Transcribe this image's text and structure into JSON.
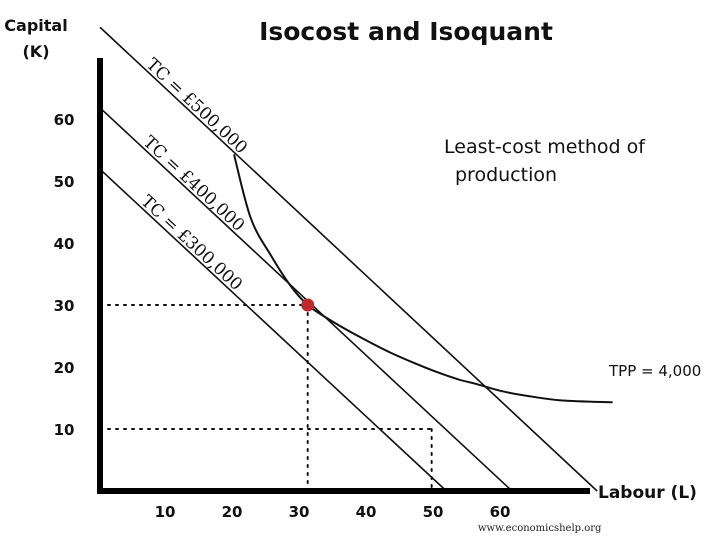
{
  "chart_data": {
    "type": "line",
    "title": "Isocost and Isoquant",
    "ylabel_line1": "Capital",
    "ylabel_line2": "(K)",
    "xlabel": "Labour (L)",
    "x_ticks": [
      10,
      20,
      30,
      40,
      50,
      60
    ],
    "y_ticks": [
      10,
      20,
      30,
      40,
      50,
      60
    ],
    "xlim": [
      0,
      73
    ],
    "ylim": [
      0,
      70
    ],
    "isocost_lines": [
      {
        "label": "TC = £500,000",
        "points": [
          [
            0,
            74.8
          ],
          [
            74.2,
            0
          ]
        ]
      },
      {
        "label": "TC = £400,000",
        "points": [
          [
            0,
            61.8
          ],
          [
            61.5,
            0
          ]
        ]
      },
      {
        "label": "TC = £300,000",
        "points": [
          [
            0,
            51.9
          ],
          [
            51.7,
            0
          ]
        ]
      }
    ],
    "isoquant": {
      "label": "TPP = 4,000",
      "points": [
        [
          20,
          54.3
        ],
        [
          22.5,
          44
        ],
        [
          25.5,
          38
        ],
        [
          28.5,
          33
        ],
        [
          31,
          30
        ],
        [
          34,
          27.8
        ],
        [
          38,
          25.3
        ],
        [
          43,
          22.5
        ],
        [
          47,
          20.6
        ],
        [
          50.5,
          19.1
        ],
        [
          53.5,
          18
        ],
        [
          56,
          17.3
        ],
        [
          60,
          16.1
        ],
        [
          64,
          15.3
        ],
        [
          69,
          14.6
        ],
        [
          76.5,
          14.3
        ]
      ]
    },
    "optimum": {
      "x": 31,
      "y": 30
    },
    "reference_points": [
      {
        "x": 31,
        "y": 30
      },
      {
        "x": 49.5,
        "y": 10
      }
    ],
    "annotation_line1": "Least-cost method of",
    "annotation_line2": "production",
    "source": "www.economicshelp.org",
    "colors": {
      "axis": "#000000",
      "line": "#111111",
      "optimum": "#c0282b"
    }
  }
}
